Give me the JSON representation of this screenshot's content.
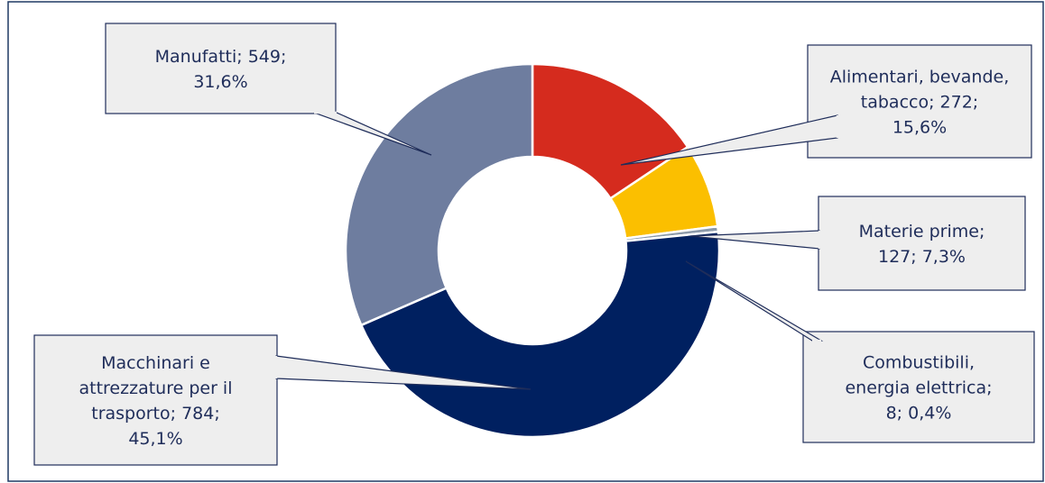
{
  "colors": {
    "frame": "#1f3864",
    "callout_fill": "#eeeeee",
    "callout_stroke": "#1f2d5a",
    "label_text": "#1f2d5a",
    "slice_separator": "#ffffff"
  },
  "chart_data": {
    "type": "pie",
    "variant": "donut",
    "title": "",
    "start_angle_deg": -90,
    "direction": "clockwise",
    "slices": [
      {
        "category": "Alimentari, bevande, tabacco",
        "value": 272,
        "percent": "15,6%",
        "label_lines": [
          "Alimentari, bevande,",
          "tabacco; 272;",
          "15,6%"
        ],
        "color": "#d52b1e"
      },
      {
        "category": "Materie prime",
        "value": 127,
        "percent": "7,3%",
        "label_lines": [
          "Materie prime;",
          "127; 7,3%"
        ],
        "color": "#fbbf00"
      },
      {
        "category": "Combustibili, energia elettrica",
        "value": 8,
        "percent": "0,4%",
        "label_lines": [
          "Combustibili,",
          "energia elettrica;",
          "8; 0,4%"
        ],
        "color": "#8c9aaa"
      },
      {
        "category": "Macchinari e attrezzature per il trasporto",
        "value": 784,
        "percent": "45,1%",
        "label_lines": [
          "Macchinari e",
          "attrezzature per il",
          "trasporto; 784;",
          "45,1%"
        ],
        "color": "#002060"
      },
      {
        "category": "Manufatti",
        "value": 549,
        "percent": "31,6%",
        "label_lines": [
          "Manufatti; 549;",
          "31,6%"
        ],
        "color": "#6e7d9f"
      }
    ],
    "legend": "none"
  }
}
